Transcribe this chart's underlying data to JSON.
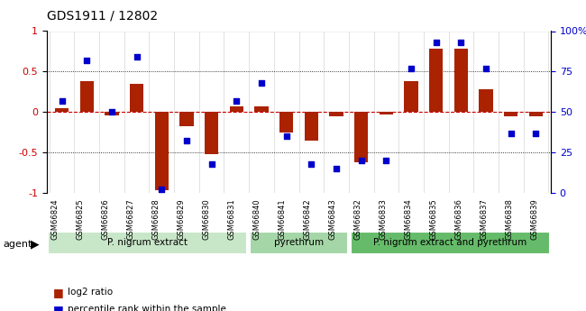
{
  "title": "GDS1911 / 12802",
  "samples": [
    "GSM66824",
    "GSM66825",
    "GSM66826",
    "GSM66827",
    "GSM66828",
    "GSM66829",
    "GSM66830",
    "GSM66831",
    "GSM66840",
    "GSM66841",
    "GSM66842",
    "GSM66843",
    "GSM66832",
    "GSM66833",
    "GSM66834",
    "GSM66835",
    "GSM66836",
    "GSM66837",
    "GSM66838",
    "GSM66839"
  ],
  "log2_ratio": [
    0.05,
    0.38,
    -0.04,
    0.35,
    -0.97,
    -0.18,
    -0.52,
    0.07,
    0.07,
    -0.25,
    -0.35,
    -0.05,
    -0.62,
    -0.03,
    0.38,
    0.78,
    0.78,
    0.28,
    -0.05,
    -0.05
  ],
  "pct_rank": [
    57,
    82,
    50,
    84,
    2,
    32,
    18,
    57,
    68,
    35,
    18,
    15,
    20,
    20,
    77,
    93,
    93,
    77,
    37,
    37
  ],
  "groups": [
    {
      "label": "P. nigrum extract",
      "start": 0,
      "end": 8,
      "color": "#c8e6c8"
    },
    {
      "label": "pyrethrum",
      "start": 8,
      "end": 12,
      "color": "#a5d6a7"
    },
    {
      "label": "P. nigrum extract and pyrethrum",
      "start": 12,
      "end": 20,
      "color": "#66bb6a"
    }
  ],
  "bar_color": "#aa2200",
  "dot_color": "#0000cc",
  "zero_line_color": "#cc0000",
  "ylim_left": [
    -1,
    1
  ],
  "ylim_right": [
    0,
    100
  ],
  "yticks_left": [
    -1,
    -0.5,
    0,
    0.5,
    1
  ],
  "yticks_right": [
    0,
    25,
    50,
    75,
    100
  ],
  "hlines": [
    0.5,
    -0.5
  ],
  "legend_items": [
    {
      "label": "log2 ratio",
      "color": "#aa2200",
      "marker": "s"
    },
    {
      "label": "percentile rank within the sample",
      "color": "#0000cc",
      "marker": "s"
    }
  ]
}
